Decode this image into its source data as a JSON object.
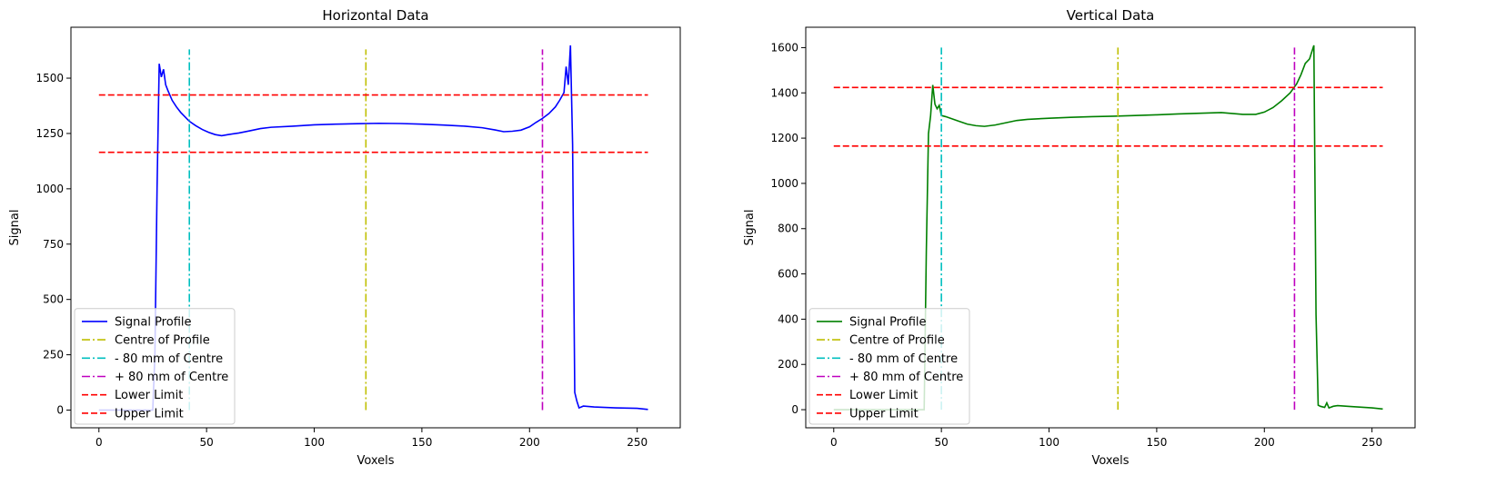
{
  "chart_data": [
    {
      "type": "line",
      "title": "Horizontal Data",
      "xlabel": "Voxels",
      "ylabel": "Signal",
      "xlim": [
        -13,
        270
      ],
      "ylim": [
        -80,
        1730
      ],
      "xticks": [
        0,
        50,
        100,
        150,
        200,
        250
      ],
      "yticks": [
        0,
        250,
        500,
        750,
        1000,
        1250,
        1500
      ],
      "grid": false,
      "legend_position": "lower left",
      "series": [
        {
          "name": "Signal Profile",
          "color": "#0000ff",
          "style": "solid",
          "points": [
            [
              0,
              0
            ],
            [
              25,
              0
            ],
            [
              26,
              250
            ],
            [
              27,
              1000
            ],
            [
              28,
              1565
            ],
            [
              29,
              1505
            ],
            [
              30,
              1540
            ],
            [
              31,
              1470
            ],
            [
              32,
              1445
            ],
            [
              34,
              1400
            ],
            [
              36,
              1370
            ],
            [
              38,
              1345
            ],
            [
              40,
              1325
            ],
            [
              42,
              1305
            ],
            [
              45,
              1285
            ],
            [
              48,
              1268
            ],
            [
              51,
              1255
            ],
            [
              54,
              1245
            ],
            [
              57,
              1240
            ],
            [
              60,
              1245
            ],
            [
              65,
              1252
            ],
            [
              70,
              1262
            ],
            [
              75,
              1272
            ],
            [
              80,
              1278
            ],
            [
              90,
              1283
            ],
            [
              100,
              1289
            ],
            [
              110,
              1292
            ],
            [
              120,
              1294
            ],
            [
              130,
              1296
            ],
            [
              140,
              1295
            ],
            [
              150,
              1292
            ],
            [
              160,
              1288
            ],
            [
              170,
              1283
            ],
            [
              178,
              1276
            ],
            [
              184,
              1266
            ],
            [
              188,
              1258
            ],
            [
              192,
              1260
            ],
            [
              196,
              1265
            ],
            [
              200,
              1280
            ],
            [
              203,
              1300
            ],
            [
              206,
              1318
            ],
            [
              209,
              1340
            ],
            [
              212,
              1370
            ],
            [
              214,
              1400
            ],
            [
              216,
              1435
            ],
            [
              217,
              1552
            ],
            [
              218,
              1470
            ],
            [
              219,
              1648
            ],
            [
              220,
              1200
            ],
            [
              221,
              80
            ],
            [
              222,
              40
            ],
            [
              223,
              10
            ],
            [
              225,
              18
            ],
            [
              230,
              14
            ],
            [
              240,
              10
            ],
            [
              250,
              8
            ],
            [
              255,
              3
            ]
          ]
        },
        {
          "name": "Centre of Profile",
          "color": "#bfbf00",
          "style": "dashdot",
          "vline": {
            "x": 124,
            "y0": 0,
            "y1": 1630
          }
        },
        {
          "name": "- 80 mm of Centre",
          "color": "#00bfbf",
          "style": "dashdot",
          "vline": {
            "x": 42,
            "y0": 0,
            "y1": 1630
          }
        },
        {
          "name": "+ 80 mm of Centre",
          "color": "#bf00bf",
          "style": "dashdot",
          "vline": {
            "x": 206,
            "y0": 0,
            "y1": 1630
          }
        },
        {
          "name": "Lower Limit",
          "color": "#ff0000",
          "style": "dashed",
          "hline": {
            "y": 1424,
            "x0": 0,
            "x1": 255
          }
        },
        {
          "name": "Upper Limit",
          "color": "#ff0000",
          "style": "dashed",
          "hline": {
            "y": 1165,
            "x0": 0,
            "x1": 255
          }
        }
      ]
    },
    {
      "type": "line",
      "title": "Vertical Data",
      "xlabel": "Voxels",
      "ylabel": "Signal",
      "xlim": [
        -13,
        270
      ],
      "ylim": [
        -80,
        1690
      ],
      "xticks": [
        0,
        50,
        100,
        150,
        200,
        250
      ],
      "yticks": [
        0,
        200,
        400,
        600,
        800,
        1000,
        1200,
        1400,
        1600
      ],
      "grid": false,
      "legend_position": "lower left",
      "series": [
        {
          "name": "Signal Profile",
          "color": "#008000",
          "style": "solid",
          "points": [
            [
              0,
              0
            ],
            [
              42,
              0
            ],
            [
              43,
              700
            ],
            [
              44,
              1220
            ],
            [
              45,
              1300
            ],
            [
              46,
              1435
            ],
            [
              47,
              1350
            ],
            [
              48,
              1330
            ],
            [
              49,
              1345
            ],
            [
              50,
              1300
            ],
            [
              52,
              1295
            ],
            [
              55,
              1285
            ],
            [
              58,
              1275
            ],
            [
              62,
              1262
            ],
            [
              66,
              1255
            ],
            [
              70,
              1252
            ],
            [
              75,
              1258
            ],
            [
              80,
              1268
            ],
            [
              85,
              1278
            ],
            [
              90,
              1283
            ],
            [
              100,
              1288
            ],
            [
              110,
              1292
            ],
            [
              120,
              1295
            ],
            [
              130,
              1297
            ],
            [
              140,
              1300
            ],
            [
              150,
              1303
            ],
            [
              160,
              1307
            ],
            [
              170,
              1310
            ],
            [
              180,
              1313
            ],
            [
              190,
              1305
            ],
            [
              196,
              1305
            ],
            [
              200,
              1315
            ],
            [
              204,
              1335
            ],
            [
              208,
              1365
            ],
            [
              212,
              1400
            ],
            [
              215,
              1440
            ],
            [
              217,
              1480
            ],
            [
              219,
              1530
            ],
            [
              221,
              1550
            ],
            [
              222,
              1580
            ],
            [
              223,
              1610
            ],
            [
              224,
              420
            ],
            [
              225,
              20
            ],
            [
              226,
              15
            ],
            [
              228,
              10
            ],
            [
              229,
              30
            ],
            [
              230,
              8
            ],
            [
              232,
              15
            ],
            [
              234,
              18
            ],
            [
              240,
              14
            ],
            [
              250,
              8
            ],
            [
              255,
              3
            ]
          ]
        },
        {
          "name": "Centre of Profile",
          "color": "#bfbf00",
          "style": "dashdot",
          "vline": {
            "x": 132,
            "y0": 0,
            "y1": 1600
          }
        },
        {
          "name": "- 80 mm of Centre",
          "color": "#00bfbf",
          "style": "dashdot",
          "vline": {
            "x": 50,
            "y0": 0,
            "y1": 1600
          }
        },
        {
          "name": "+ 80 mm of Centre",
          "color": "#bf00bf",
          "style": "dashdot",
          "vline": {
            "x": 214,
            "y0": 0,
            "y1": 1600
          }
        },
        {
          "name": "Lower Limit",
          "color": "#ff0000",
          "style": "dashed",
          "hline": {
            "y": 1424,
            "x0": 0,
            "x1": 255
          }
        },
        {
          "name": "Upper Limit",
          "color": "#ff0000",
          "style": "dashed",
          "hline": {
            "y": 1165,
            "x0": 0,
            "x1": 255
          }
        }
      ]
    }
  ]
}
